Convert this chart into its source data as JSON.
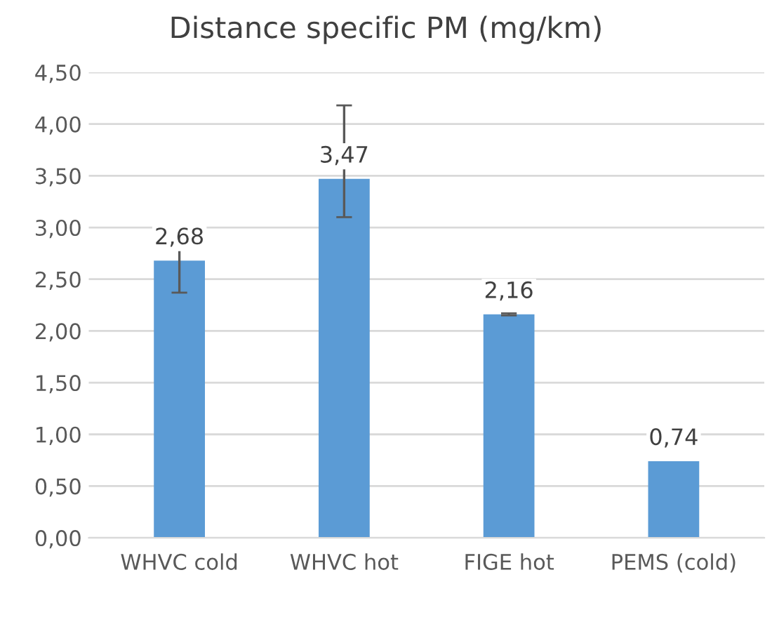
{
  "chart_data": {
    "type": "bar",
    "title": "Distance specific PM (mg/km)",
    "categories": [
      "WHVC cold",
      "WHVC hot",
      "FIGE hot",
      "PEMS (cold)"
    ],
    "values": [
      2.68,
      3.47,
      2.16,
      0.74
    ],
    "value_labels": [
      "2,68",
      "3,47",
      "2,16",
      "0,74"
    ],
    "errors": [
      [
        2.37,
        2.99
      ],
      [
        3.1,
        4.18
      ],
      [
        2.15,
        2.17
      ],
      null
    ],
    "color": "#5b9bd5",
    "ylim": [
      0,
      4.5
    ],
    "yticks": [
      {
        "value": 0,
        "label": "0,00"
      },
      {
        "value": 0.5,
        "label": "0,50"
      },
      {
        "value": 1,
        "label": "1,00"
      },
      {
        "value": 1.5,
        "label": "1,50"
      },
      {
        "value": 2,
        "label": "2,00"
      },
      {
        "value": 2.5,
        "label": "2,50"
      },
      {
        "value": 3,
        "label": "3,00"
      },
      {
        "value": 3.5,
        "label": "3,50"
      },
      {
        "value": 4,
        "label": "4,00"
      },
      {
        "value": 4.5,
        "label": "4,50"
      }
    ],
    "grid": "y",
    "legend": false
  }
}
